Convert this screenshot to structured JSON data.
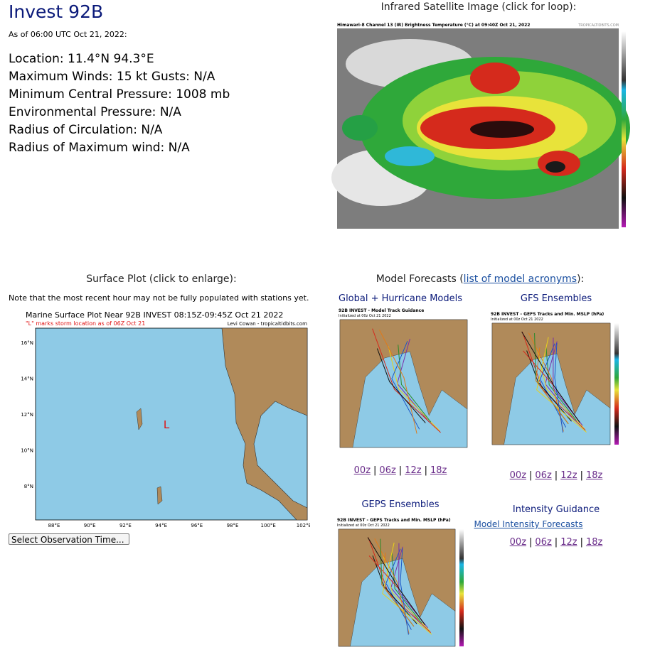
{
  "header": {
    "title": "Invest 92B",
    "as_of": "As of 06:00 UTC Oct 21, 2022:"
  },
  "storm_info": [
    "Location: 11.4°N 94.3°E",
    "Maximum Winds: 15 kt  Gusts: N/A",
    "Minimum Central Pressure: 1008 mb",
    "Environmental Pressure: N/A",
    "Radius of Circulation: N/A",
    "Radius of Maximum wind: N/A"
  ],
  "satellite": {
    "heading": "Infrared Satellite Image (click for loop):",
    "image_title": "Himawari-8 Channel 13 (IR) Brightness Temperature (°C) at 09:40Z Oct 21, 2022",
    "credit": "TROPICALTIDBITS.COM"
  },
  "surface_plot": {
    "heading": "Surface Plot (click to enlarge):",
    "note": "Note that the most recent hour may not be fully populated with stations yet.",
    "image_title": "Marine Surface Plot Near 92B INVEST 08:15Z-09:45Z Oct 21 2022",
    "image_subtitle": "\"L\" marks storm location as of 06Z Oct 21",
    "credit": "Levi Cowan - tropicaltidbits.com",
    "lat_labels": [
      "16°N",
      "14°N",
      "12°N",
      "10°N",
      "8°N"
    ],
    "lon_labels": [
      "88°E",
      "90°E",
      "92°E",
      "94°E",
      "96°E",
      "98°E",
      "100°E",
      "102°E"
    ],
    "storm_marker": "L",
    "select": "Select Observation Time..."
  },
  "model_forecasts": {
    "heading_prefix": "Model Forecasts (",
    "heading_link": "list of model acronyms",
    "heading_suffix": "):",
    "separator": "|",
    "panels": [
      {
        "heading": "Global + Hurricane Models",
        "image_title": "92B INVEST - Model Track Guidance",
        "image_subtitle": "Initialized at 00z Oct 21 2022",
        "links": [
          "00z",
          "06z",
          "12z",
          "18z"
        ]
      },
      {
        "heading": "GFS Ensembles",
        "image_title": "92B INVEST - GEFS Tracks and Min. MSLP (hPa)",
        "image_subtitle": "Initialized at 00z Oct 21 2022",
        "links": [
          "00z",
          "06z",
          "12z",
          "18z"
        ]
      },
      {
        "heading": "GEPS Ensembles",
        "image_title": "92B INVEST - GEPS Tracks and Min. MSLP (hPa)",
        "image_subtitle": "Initialized at 00z Oct 21 2022",
        "links": []
      }
    ],
    "intensity": {
      "heading": "Intensity Guidance",
      "link": "Model Intensity Forecasts",
      "links": [
        "00z",
        "06z",
        "12z",
        "18z"
      ]
    }
  }
}
